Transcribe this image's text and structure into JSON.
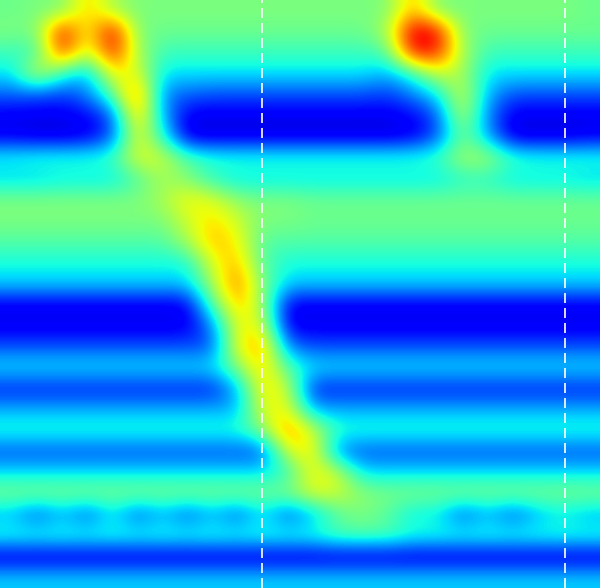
{
  "chart_data": {
    "type": "heatmap",
    "tick_labels": false,
    "color": "jet",
    "color_range": [
      0,
      1
    ],
    "vlines": [
      10.48,
      22.6
    ],
    "cells": [
      [
        0.48,
        0.5,
        0.5,
        0.7,
        0.55,
        0.5,
        0.5,
        0.5,
        0.5,
        0.5,
        0.5,
        0.5,
        0.5,
        0.5,
        0.5,
        0.5,
        0.72,
        0.5,
        0.5,
        0.5,
        0.5,
        0.5,
        0.5,
        0.48
      ],
      [
        0.5,
        0.5,
        0.92,
        0.6,
        0.95,
        0.5,
        0.48,
        0.48,
        0.48,
        0.48,
        0.48,
        0.48,
        0.48,
        0.48,
        0.48,
        0.55,
        0.95,
        0.92,
        0.5,
        0.48,
        0.48,
        0.48,
        0.48,
        0.48
      ],
      [
        0.42,
        0.42,
        0.88,
        0.55,
        0.9,
        0.55,
        0.42,
        0.42,
        0.42,
        0.42,
        0.42,
        0.42,
        0.42,
        0.42,
        0.42,
        0.45,
        0.9,
        0.88,
        0.55,
        0.42,
        0.42,
        0.42,
        0.42,
        0.42
      ],
      [
        0.35,
        0.62,
        0.4,
        0.3,
        0.65,
        0.62,
        0.35,
        0.35,
        0.35,
        0.35,
        0.35,
        0.35,
        0.35,
        0.35,
        0.35,
        0.3,
        0.4,
        0.6,
        0.55,
        0.35,
        0.35,
        0.35,
        0.35,
        0.35
      ],
      [
        0.22,
        0.2,
        0.18,
        0.25,
        0.45,
        0.82,
        0.25,
        0.22,
        0.2,
        0.2,
        0.2,
        0.2,
        0.2,
        0.2,
        0.2,
        0.18,
        0.25,
        0.35,
        0.62,
        0.3,
        0.2,
        0.2,
        0.2,
        0.2
      ],
      [
        0.1,
        0.1,
        0.1,
        0.12,
        0.2,
        0.75,
        0.3,
        0.1,
        0.1,
        0.1,
        0.1,
        0.1,
        0.1,
        0.1,
        0.1,
        0.1,
        0.12,
        0.2,
        0.6,
        0.25,
        0.1,
        0.1,
        0.1,
        0.1
      ],
      [
        0.1,
        0.08,
        0.08,
        0.1,
        0.2,
        0.65,
        0.4,
        0.08,
        0.08,
        0.08,
        0.08,
        0.08,
        0.08,
        0.08,
        0.08,
        0.08,
        0.1,
        0.2,
        0.5,
        0.3,
        0.08,
        0.08,
        0.08,
        0.1
      ],
      [
        0.38,
        0.4,
        0.4,
        0.4,
        0.42,
        0.62,
        0.6,
        0.45,
        0.4,
        0.4,
        0.4,
        0.4,
        0.4,
        0.4,
        0.4,
        0.4,
        0.4,
        0.42,
        0.55,
        0.55,
        0.42,
        0.4,
        0.4,
        0.4
      ],
      [
        0.33,
        0.33,
        0.35,
        0.35,
        0.35,
        0.45,
        0.55,
        0.5,
        0.4,
        0.35,
        0.35,
        0.35,
        0.35,
        0.35,
        0.35,
        0.35,
        0.35,
        0.35,
        0.4,
        0.4,
        0.35,
        0.35,
        0.35,
        0.33
      ],
      [
        0.5,
        0.5,
        0.5,
        0.5,
        0.5,
        0.5,
        0.55,
        0.65,
        0.62,
        0.52,
        0.5,
        0.5,
        0.48,
        0.48,
        0.48,
        0.48,
        0.48,
        0.48,
        0.48,
        0.48,
        0.48,
        0.48,
        0.48,
        0.48
      ],
      [
        0.5,
        0.5,
        0.5,
        0.5,
        0.5,
        0.5,
        0.5,
        0.6,
        0.68,
        0.6,
        0.5,
        0.5,
        0.48,
        0.48,
        0.48,
        0.48,
        0.48,
        0.48,
        0.48,
        0.48,
        0.48,
        0.48,
        0.48,
        0.48
      ],
      [
        0.45,
        0.45,
        0.45,
        0.45,
        0.45,
        0.45,
        0.45,
        0.55,
        0.72,
        0.65,
        0.45,
        0.45,
        0.45,
        0.45,
        0.45,
        0.45,
        0.45,
        0.45,
        0.45,
        0.45,
        0.45,
        0.45,
        0.45,
        0.45
      ],
      [
        0.38,
        0.38,
        0.38,
        0.38,
        0.38,
        0.38,
        0.38,
        0.38,
        0.62,
        0.72,
        0.45,
        0.38,
        0.38,
        0.38,
        0.38,
        0.38,
        0.38,
        0.38,
        0.38,
        0.38,
        0.38,
        0.38,
        0.38,
        0.38
      ],
      [
        0.33,
        0.33,
        0.33,
        0.33,
        0.33,
        0.33,
        0.33,
        0.33,
        0.55,
        0.8,
        0.5,
        0.33,
        0.33,
        0.33,
        0.33,
        0.33,
        0.33,
        0.33,
        0.33,
        0.33,
        0.33,
        0.33,
        0.33,
        0.33
      ],
      [
        0.1,
        0.1,
        0.1,
        0.1,
        0.1,
        0.1,
        0.1,
        0.1,
        0.45,
        0.72,
        0.55,
        0.1,
        0.1,
        0.1,
        0.1,
        0.1,
        0.1,
        0.1,
        0.1,
        0.1,
        0.1,
        0.1,
        0.1,
        0.1
      ],
      [
        0.1,
        0.1,
        0.1,
        0.1,
        0.1,
        0.1,
        0.1,
        0.1,
        0.25,
        0.65,
        0.62,
        0.1,
        0.1,
        0.1,
        0.1,
        0.1,
        0.1,
        0.1,
        0.1,
        0.1,
        0.1,
        0.1,
        0.1,
        0.1
      ],
      [
        0.2,
        0.2,
        0.2,
        0.2,
        0.2,
        0.2,
        0.2,
        0.2,
        0.2,
        0.65,
        0.75,
        0.25,
        0.2,
        0.2,
        0.2,
        0.2,
        0.2,
        0.2,
        0.2,
        0.2,
        0.2,
        0.2,
        0.2,
        0.2
      ],
      [
        0.35,
        0.35,
        0.35,
        0.35,
        0.35,
        0.35,
        0.35,
        0.35,
        0.35,
        0.5,
        0.7,
        0.45,
        0.35,
        0.35,
        0.35,
        0.35,
        0.35,
        0.35,
        0.35,
        0.35,
        0.35,
        0.35,
        0.35,
        0.35
      ],
      [
        0.15,
        0.15,
        0.15,
        0.15,
        0.15,
        0.15,
        0.15,
        0.15,
        0.15,
        0.3,
        0.68,
        0.6,
        0.15,
        0.15,
        0.15,
        0.15,
        0.15,
        0.15,
        0.15,
        0.15,
        0.15,
        0.15,
        0.15,
        0.15
      ],
      [
        0.3,
        0.3,
        0.3,
        0.3,
        0.3,
        0.3,
        0.3,
        0.3,
        0.3,
        0.3,
        0.62,
        0.65,
        0.3,
        0.3,
        0.3,
        0.3,
        0.3,
        0.3,
        0.3,
        0.3,
        0.3,
        0.3,
        0.3,
        0.3
      ],
      [
        0.4,
        0.4,
        0.4,
        0.4,
        0.4,
        0.4,
        0.4,
        0.4,
        0.4,
        0.4,
        0.5,
        0.78,
        0.6,
        0.4,
        0.4,
        0.4,
        0.4,
        0.4,
        0.4,
        0.4,
        0.4,
        0.4,
        0.4,
        0.4
      ],
      [
        0.2,
        0.2,
        0.2,
        0.2,
        0.2,
        0.2,
        0.2,
        0.2,
        0.2,
        0.2,
        0.2,
        0.6,
        0.68,
        0.25,
        0.2,
        0.2,
        0.2,
        0.2,
        0.2,
        0.2,
        0.2,
        0.2,
        0.2,
        0.2
      ],
      [
        0.35,
        0.35,
        0.35,
        0.35,
        0.35,
        0.35,
        0.35,
        0.35,
        0.35,
        0.35,
        0.35,
        0.4,
        0.65,
        0.6,
        0.35,
        0.35,
        0.35,
        0.35,
        0.35,
        0.35,
        0.35,
        0.35,
        0.35,
        0.35
      ],
      [
        0.5,
        0.5,
        0.5,
        0.5,
        0.5,
        0.5,
        0.5,
        0.5,
        0.5,
        0.5,
        0.5,
        0.5,
        0.62,
        0.6,
        0.52,
        0.5,
        0.5,
        0.5,
        0.5,
        0.5,
        0.5,
        0.5,
        0.5,
        0.5
      ],
      [
        0.3,
        0.2,
        0.3,
        0.2,
        0.35,
        0.2,
        0.3,
        0.2,
        0.3,
        0.2,
        0.35,
        0.2,
        0.3,
        0.45,
        0.5,
        0.45,
        0.35,
        0.35,
        0.2,
        0.3,
        0.2,
        0.3,
        0.35,
        0.3
      ],
      [
        0.4,
        0.4,
        0.4,
        0.4,
        0.4,
        0.4,
        0.4,
        0.4,
        0.4,
        0.4,
        0.4,
        0.4,
        0.4,
        0.45,
        0.45,
        0.45,
        0.4,
        0.4,
        0.4,
        0.4,
        0.4,
        0.4,
        0.4,
        0.4
      ],
      [
        0.08,
        0.08,
        0.08,
        0.08,
        0.08,
        0.08,
        0.08,
        0.08,
        0.08,
        0.08,
        0.08,
        0.08,
        0.08,
        0.08,
        0.08,
        0.08,
        0.08,
        0.08,
        0.08,
        0.08,
        0.08,
        0.08,
        0.08,
        0.08
      ],
      [
        0.33,
        0.33,
        0.33,
        0.33,
        0.33,
        0.33,
        0.33,
        0.33,
        0.33,
        0.33,
        0.33,
        0.33,
        0.33,
        0.33,
        0.33,
        0.33,
        0.33,
        0.33,
        0.33,
        0.33,
        0.33,
        0.33,
        0.33,
        0.33
      ]
    ]
  }
}
